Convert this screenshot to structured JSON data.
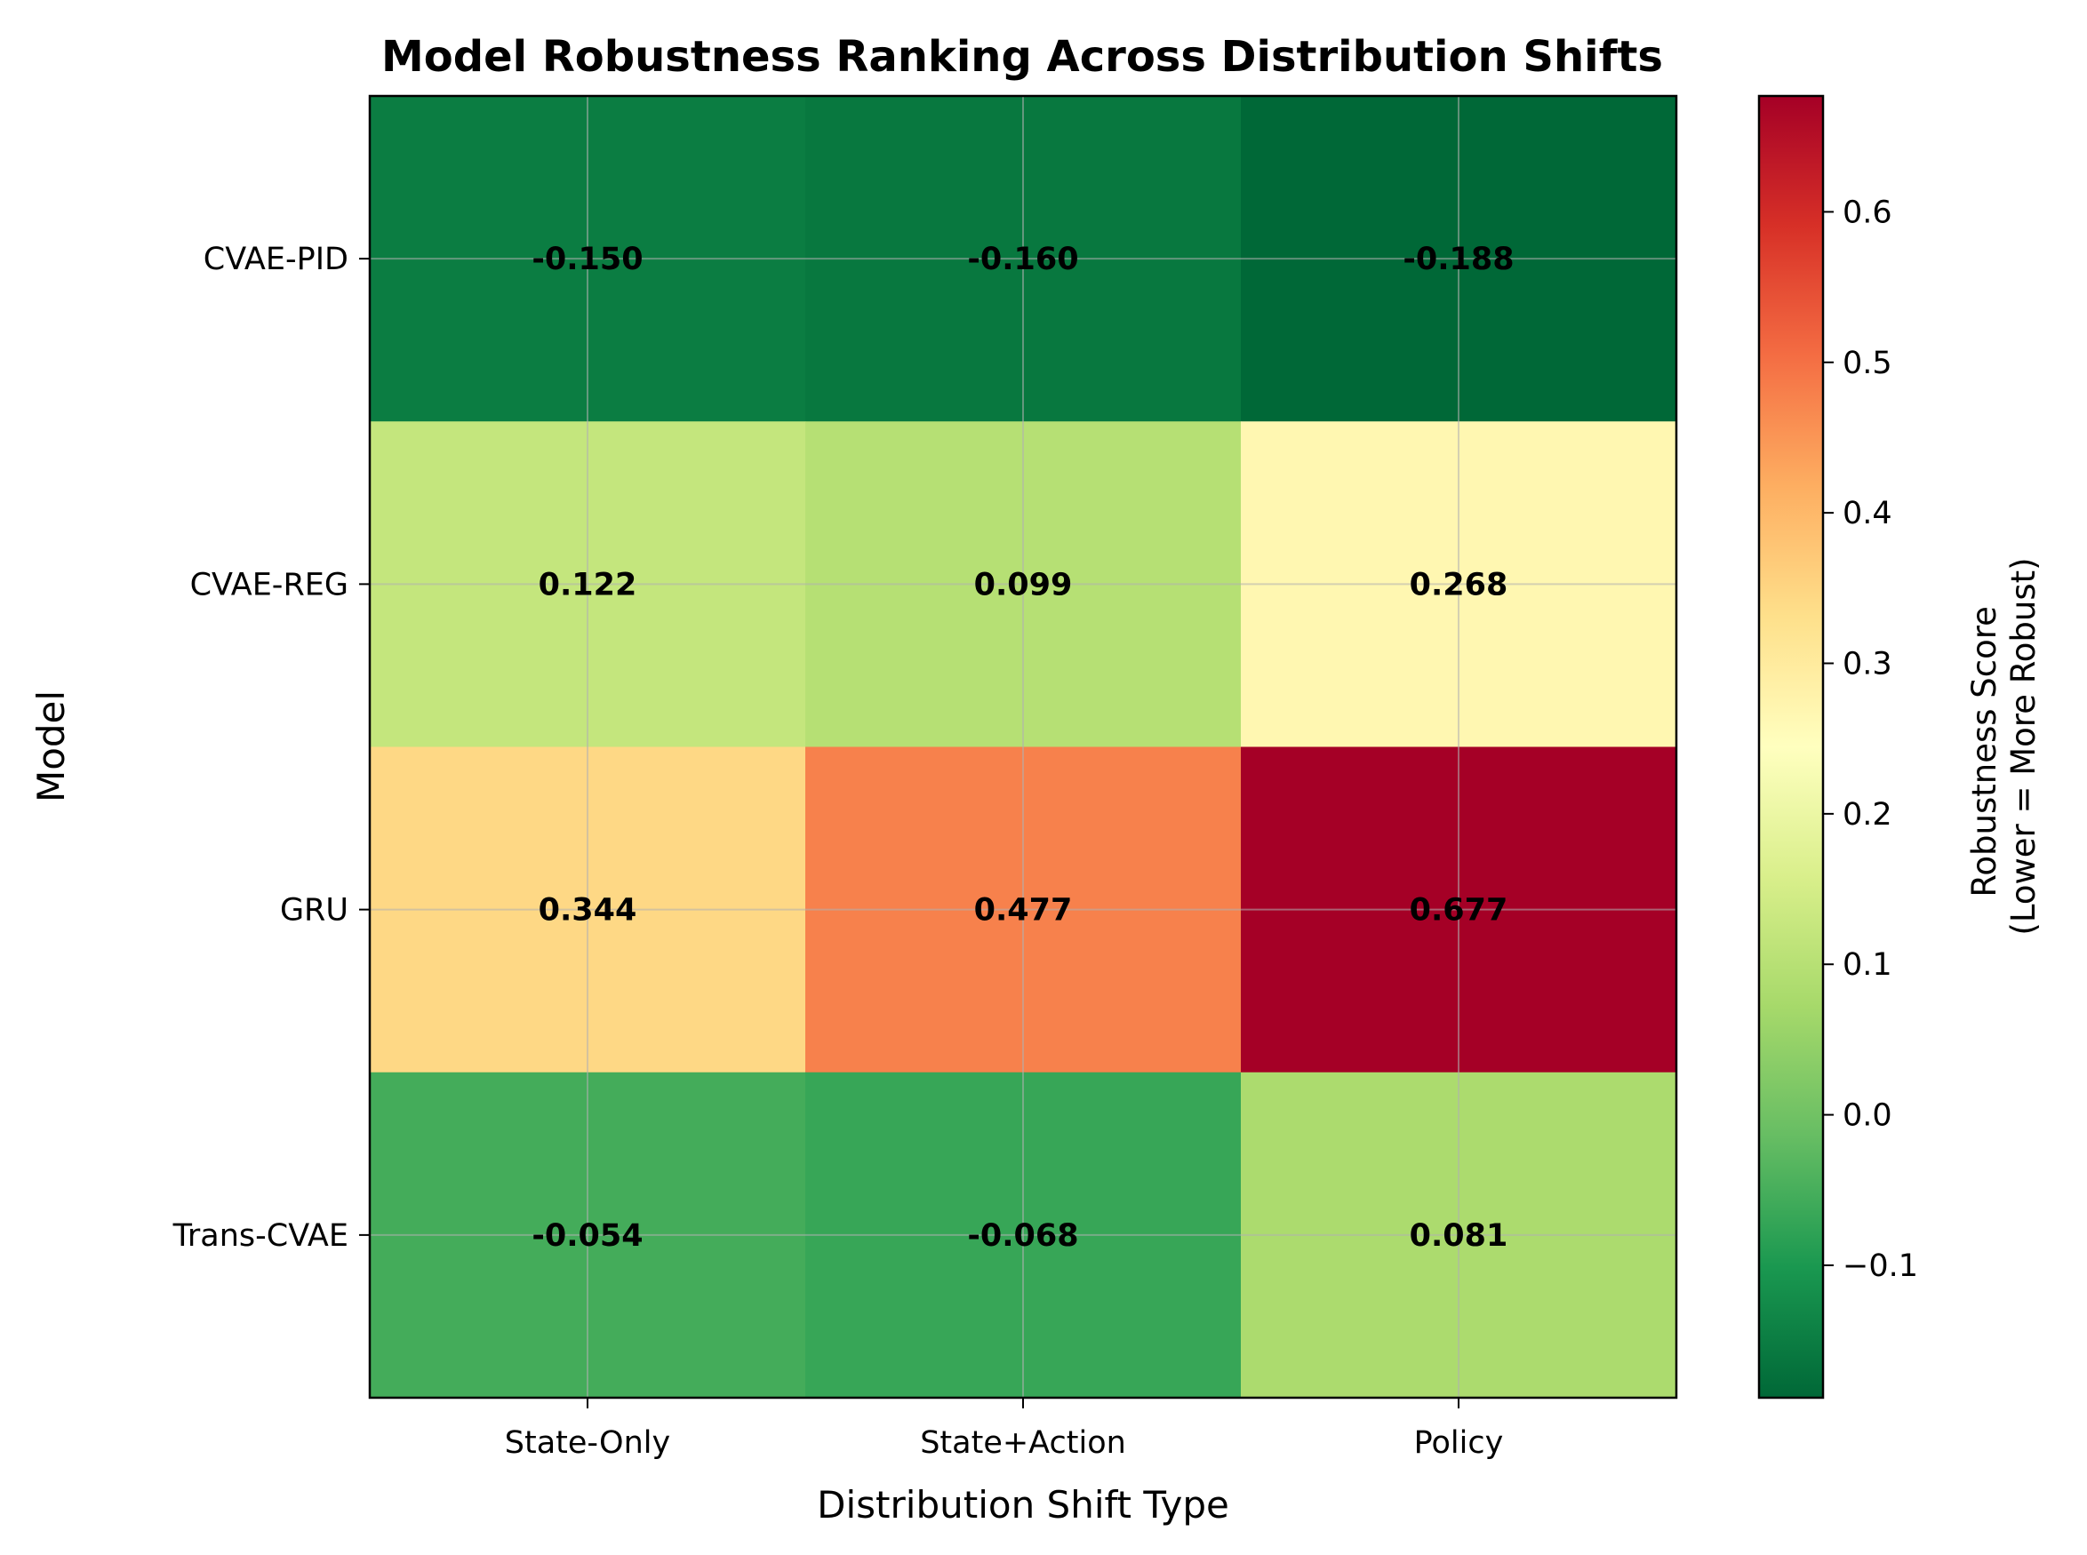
{
  "chart_data": {
    "type": "heatmap",
    "title": "Model Robustness Ranking Across Distribution Shifts",
    "xlabel": "Distribution Shift Type",
    "ylabel": "Model",
    "x_categories": [
      "State-Only",
      "State+Action",
      "Policy"
    ],
    "y_categories": [
      "CVAE-PID",
      "CVAE-REG",
      "GRU",
      "Trans-CVAE"
    ],
    "values": [
      [
        -0.15,
        -0.16,
        -0.188
      ],
      [
        0.122,
        0.099,
        0.268
      ],
      [
        0.344,
        0.477,
        0.677
      ],
      [
        -0.054,
        -0.068,
        0.081
      ]
    ],
    "value_labels": [
      [
        "-0.150",
        "-0.160",
        "-0.188"
      ],
      [
        "0.122",
        "0.099",
        "0.268"
      ],
      [
        "0.344",
        "0.477",
        "0.677"
      ],
      [
        "-0.054",
        "-0.068",
        "0.081"
      ]
    ],
    "colormap": "RdYlGn_r",
    "vmin": -0.188,
    "vmax": 0.677,
    "grid": true,
    "colorbar": {
      "label_lines": [
        "Robustness Score",
        "(Lower = More Robust)"
      ],
      "ticks": [
        -0.1,
        0.0,
        0.1,
        0.2,
        0.3,
        0.4,
        0.5,
        0.6
      ],
      "tick_labels": [
        "−0.1",
        "0.0",
        "0.1",
        "0.2",
        "0.3",
        "0.4",
        "0.5",
        "0.6"
      ]
    }
  }
}
